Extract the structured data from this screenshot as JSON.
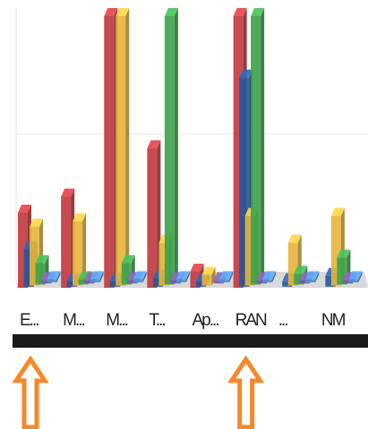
{
  "chart_data": {
    "type": "bar",
    "style": "3d-clustered",
    "categories": [
      "E...",
      "M...",
      "M...",
      "T...",
      "Ap...",
      "RAN",
      "...",
      "NM"
    ],
    "series": [
      {
        "values": [
          70,
          85,
          360,
          130,
          15,
          330,
          0,
          0
        ]
      },
      {
        "values": [
          35,
          5,
          5,
          8,
          5,
          195,
          5,
          10
        ]
      },
      {
        "values": [
          55,
          60,
          340,
          40,
          10,
          65,
          40,
          65
        ]
      },
      {
        "values": [
          20,
          5,
          20,
          340,
          0,
          340,
          10,
          25
        ]
      },
      {
        "values": [
          3,
          3,
          3,
          3,
          3,
          3,
          3,
          3
        ]
      },
      {
        "values": [
          3,
          3,
          3,
          3,
          3,
          3,
          3,
          3
        ]
      }
    ],
    "ylim": [
      0,
      300
    ],
    "gridlines": [
      0,
      140,
      280
    ],
    "grid": true,
    "legend": "none",
    "colors": [
      "#c0393e",
      "#27579b",
      "#e7b43a",
      "#3aa34a",
      "#7b56a6",
      "#4f8fd0"
    ],
    "annotations": [
      {
        "type": "arrow-up",
        "category_index": 0,
        "color": "#f5892a"
      },
      {
        "type": "arrow-up",
        "category_index": 5,
        "color": "#f5892a"
      }
    ]
  }
}
